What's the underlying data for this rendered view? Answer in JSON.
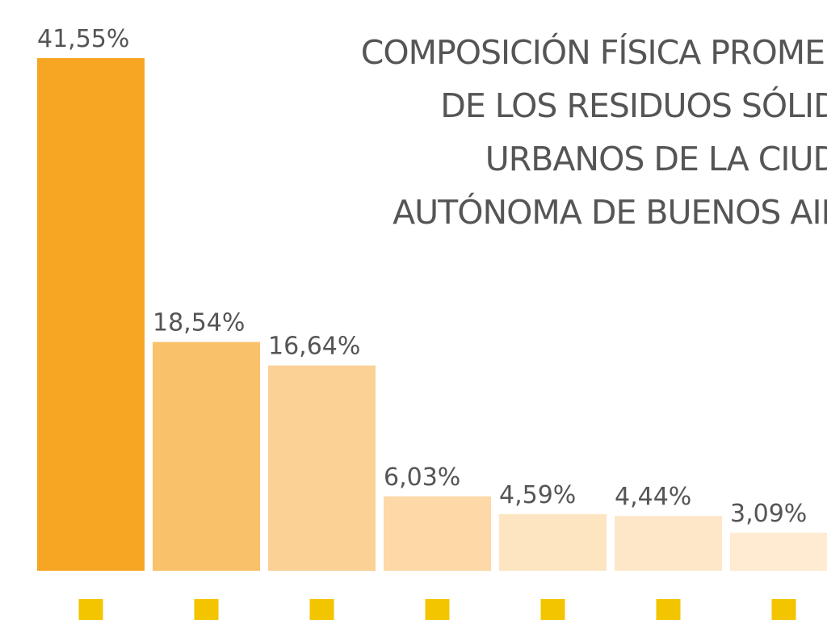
{
  "chart_data": {
    "type": "bar",
    "title": "COMPOSICIÓN FÍSICA PROMEDIO DE LOS RESIDUOS SÓLIDOS URBANOS DE LA CIUDAD AUTÓNOMA DE BUENOS AIRES",
    "title_lines": [
      "COMPOSICIÓN FÍSICA PROMEDIO",
      "DE LOS RESIDUOS SÓLIDOS",
      "URBANOS DE LA CIUDAD",
      "AUTÓNOMA DE BUENOS AIRES"
    ],
    "values": [
      41.55,
      18.54,
      16.64,
      6.03,
      4.59,
      4.44,
      3.09
    ],
    "data_labels": [
      "41,55%",
      "18,54%",
      "16,64%",
      "6,03%",
      "4,59%",
      "4,44%",
      "3,09%"
    ],
    "colors": [
      "#F6A623",
      "#F9C16A",
      "#FBD196",
      "#FCD9A6",
      "#FDE5C2",
      "#FDE7C8",
      "#FEEBD2"
    ],
    "marker_color": "#F2C500",
    "ylim": [
      0,
      41.55
    ],
    "grid": false,
    "legend": "none"
  }
}
